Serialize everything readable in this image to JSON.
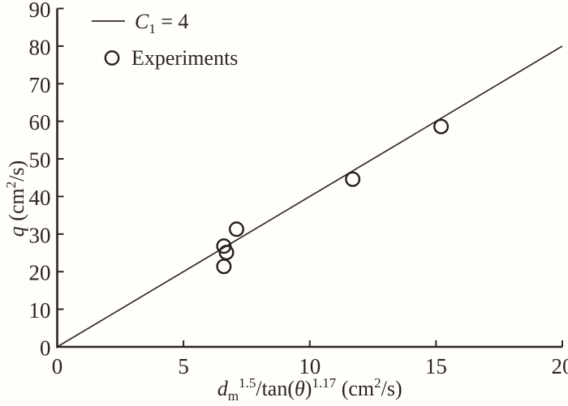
{
  "figure": {
    "background": "#fffefa",
    "ink": "#2b2724",
    "line_color": "#332e2a",
    "marker_color": "#231f1c"
  },
  "chart_data": {
    "type": "scatter",
    "title": "",
    "xlabel": "d_m^1.5/tan(theta)^1.17 (cm^2/s)",
    "ylabel": "q (cm^2/s)",
    "xlim": [
      0,
      20
    ],
    "ylim": [
      0,
      90
    ],
    "x_ticks": [
      "0",
      "5",
      "10",
      "15",
      "20"
    ],
    "x_tick_values": [
      0,
      5,
      10,
      15,
      20
    ],
    "y_ticks": [
      "0",
      "10",
      "20",
      "30",
      "40",
      "50",
      "60",
      "70",
      "80",
      "90"
    ],
    "y_tick_values": [
      0,
      10,
      20,
      30,
      40,
      50,
      60,
      70,
      80,
      90
    ],
    "grid": false,
    "legend_position": "top-left",
    "series": [
      {
        "name": "C1 = 4",
        "type": "line",
        "slope": 4,
        "points": [
          [
            0,
            0
          ],
          [
            20,
            80
          ]
        ]
      },
      {
        "name": "Experiments",
        "type": "scatter",
        "marker": "open-circle",
        "points": [
          [
            6.6,
            21.4
          ],
          [
            6.7,
            25.1
          ],
          [
            6.6,
            26.8
          ],
          [
            7.1,
            31.3
          ],
          [
            11.7,
            44.6
          ],
          [
            15.2,
            58.6
          ]
        ]
      }
    ],
    "xlabel_parts": [
      {
        "t": "d",
        "i": true
      },
      {
        "t": "m",
        "pos": "sub"
      },
      {
        "t": "1.5",
        "pos": "sup"
      },
      {
        "t": "/tan("
      },
      {
        "t": "θ",
        "i": true
      },
      {
        "t": ")"
      },
      {
        "t": "1.17",
        "pos": "sup"
      },
      {
        "t": " (cm"
      },
      {
        "t": "2",
        "pos": "sup"
      },
      {
        "t": "/s)"
      }
    ],
    "ylabel_parts": [
      {
        "t": "q",
        "i": true
      },
      {
        "t": " (cm"
      },
      {
        "t": "2",
        "pos": "sup"
      },
      {
        "t": "/s)"
      }
    ],
    "legend": [
      {
        "sample": "line",
        "label": "C1 = 4",
        "label_parts": [
          {
            "t": "C",
            "i": true
          },
          {
            "t": "1",
            "pos": "sub"
          },
          {
            "t": " = 4"
          }
        ]
      },
      {
        "sample": "circle",
        "label": "Experiments",
        "label_parts": [
          {
            "t": "Experiments"
          }
        ]
      }
    ]
  }
}
